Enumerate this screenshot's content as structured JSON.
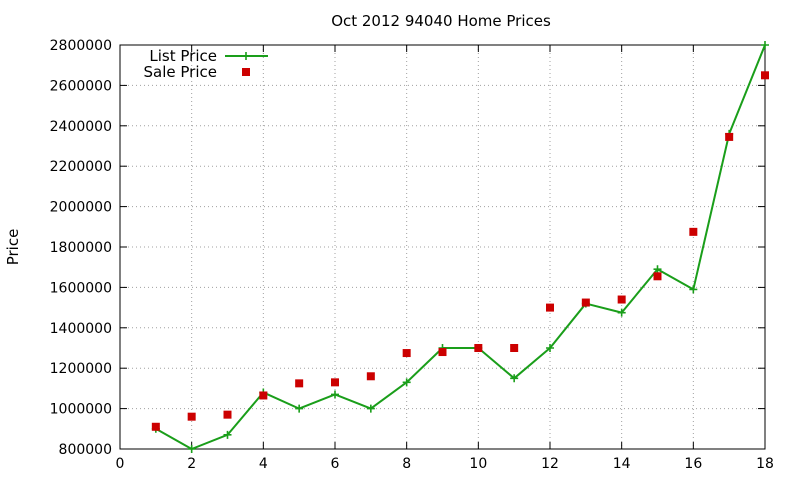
{
  "chart_data": {
    "type": "line",
    "title": "Oct 2012 94040 Home Prices",
    "xlabel": "",
    "ylabel": "Price",
    "xlim": [
      0,
      18
    ],
    "ylim": [
      800000,
      2800000
    ],
    "x_ticks": [
      0,
      2,
      4,
      6,
      8,
      10,
      12,
      14,
      16,
      18
    ],
    "y_ticks": [
      800000,
      1000000,
      1200000,
      1400000,
      1600000,
      1800000,
      2000000,
      2200000,
      2400000,
      2600000,
      2800000
    ],
    "grid": true,
    "legend_position": "top-left",
    "series": [
      {
        "name": "List Price",
        "style": "line-with-plus-markers",
        "color": "#1a9e1a",
        "x": [
          1,
          2,
          3,
          4,
          5,
          6,
          7,
          8,
          9,
          10,
          11,
          12,
          13,
          14,
          15,
          16,
          17,
          18
        ],
        "y": [
          900000,
          800000,
          870000,
          1080000,
          1000000,
          1070000,
          1000000,
          1130000,
          1300000,
          1300000,
          1150000,
          1300000,
          1520000,
          1475000,
          1690000,
          1590000,
          2360000,
          2800000
        ]
      },
      {
        "name": "Sale Price",
        "style": "square-markers",
        "color": "#cc0000",
        "x": [
          1,
          2,
          3,
          4,
          5,
          6,
          7,
          8,
          9,
          10,
          11,
          12,
          13,
          14,
          15,
          16,
          17,
          18
        ],
        "y": [
          910000,
          960000,
          970000,
          1065000,
          1125000,
          1130000,
          1160000,
          1275000,
          1280000,
          1300000,
          1300000,
          1500000,
          1525000,
          1540000,
          1655000,
          1875000,
          2345000,
          2650000
        ]
      }
    ]
  }
}
